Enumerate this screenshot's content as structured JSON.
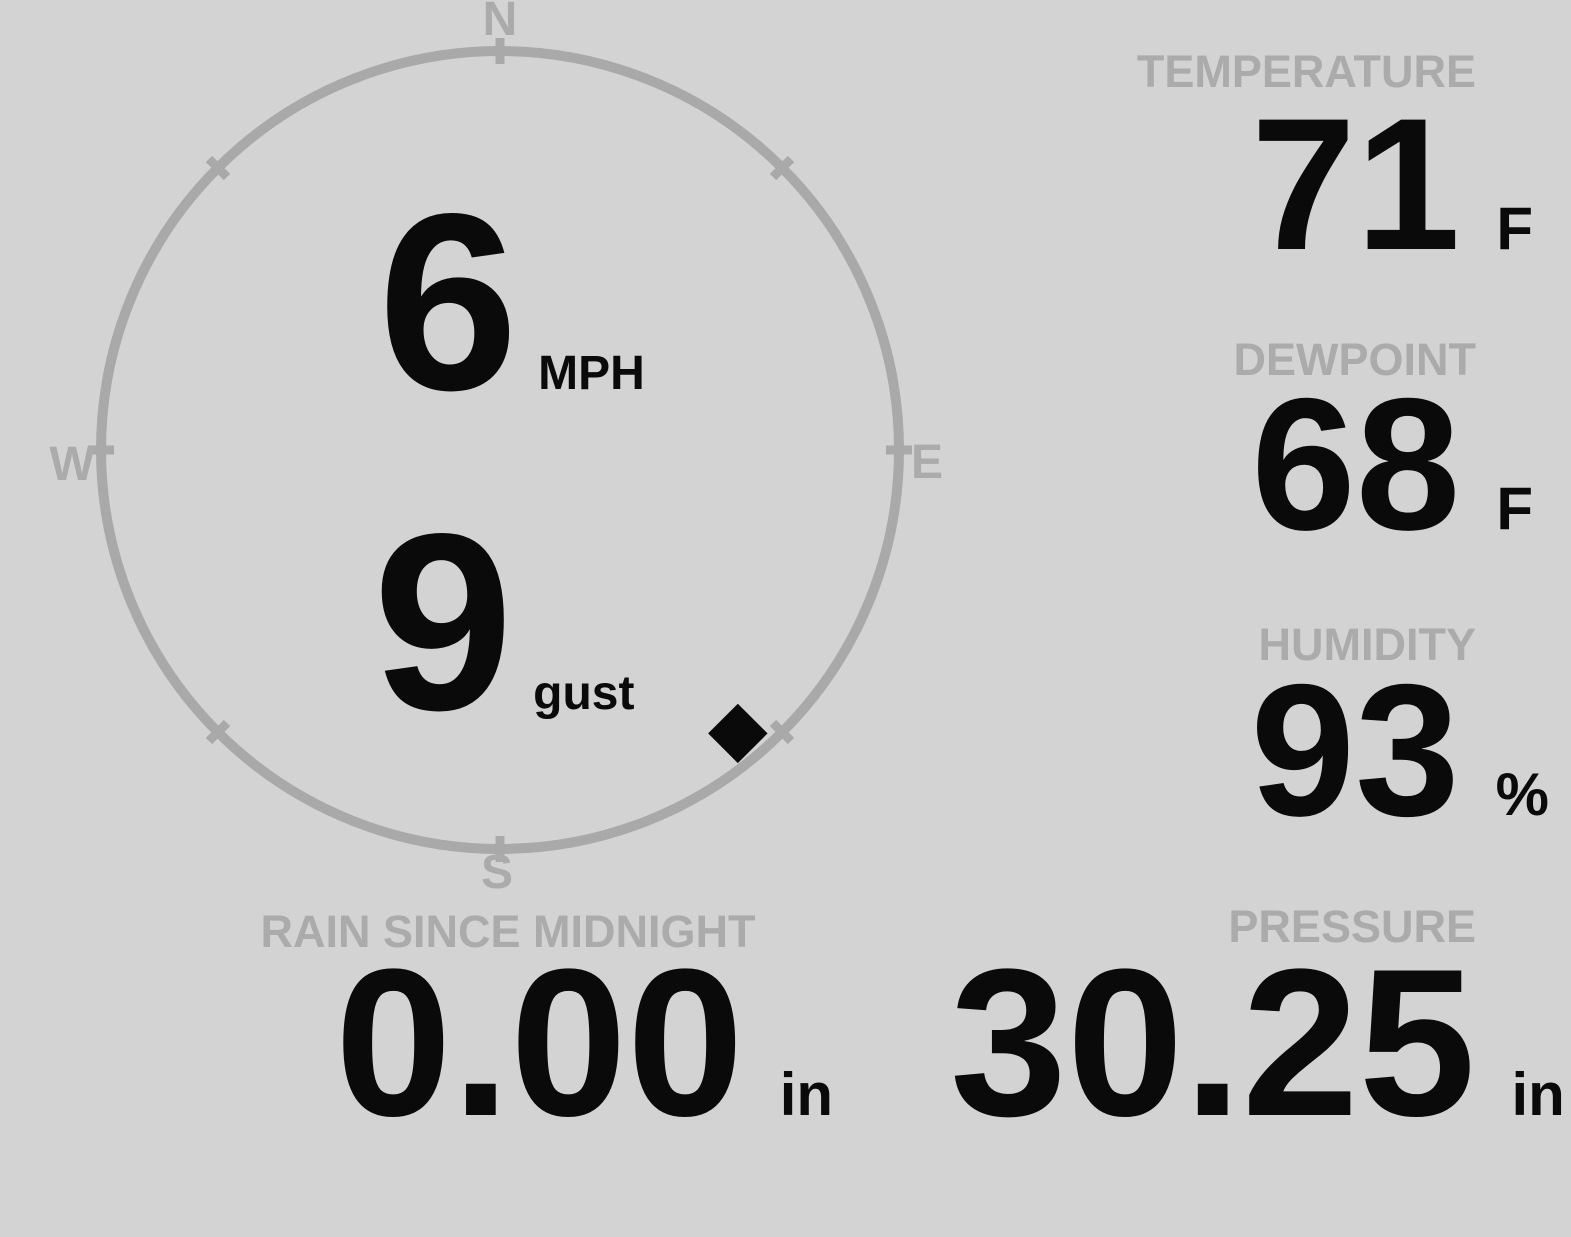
{
  "colors": {
    "background": "#d3d3d3",
    "muted_text": "#ababab",
    "compass_ring": "#a9a9a9",
    "value_text": "#0a0a0a"
  },
  "compass": {
    "cardinals": {
      "north": "N",
      "east": "E",
      "south": "S",
      "west": "W"
    },
    "wind_speed": {
      "value": "6",
      "unit": "MPH"
    },
    "wind_gust": {
      "value": "9",
      "unit": "gust"
    },
    "wind_direction_deg": 140
  },
  "metrics": {
    "temperature": {
      "label": "TEMPERATURE",
      "value": "71",
      "unit": "F"
    },
    "dewpoint": {
      "label": "DEWPOINT",
      "value": "68",
      "unit": "F"
    },
    "humidity": {
      "label": "HUMIDITY",
      "value": "93",
      "unit": "%"
    },
    "rain": {
      "label": "RAIN SINCE MIDNIGHT",
      "value": "0.00",
      "unit": "in"
    },
    "pressure": {
      "label": "PRESSURE",
      "value": "30.25",
      "unit": "in"
    }
  }
}
